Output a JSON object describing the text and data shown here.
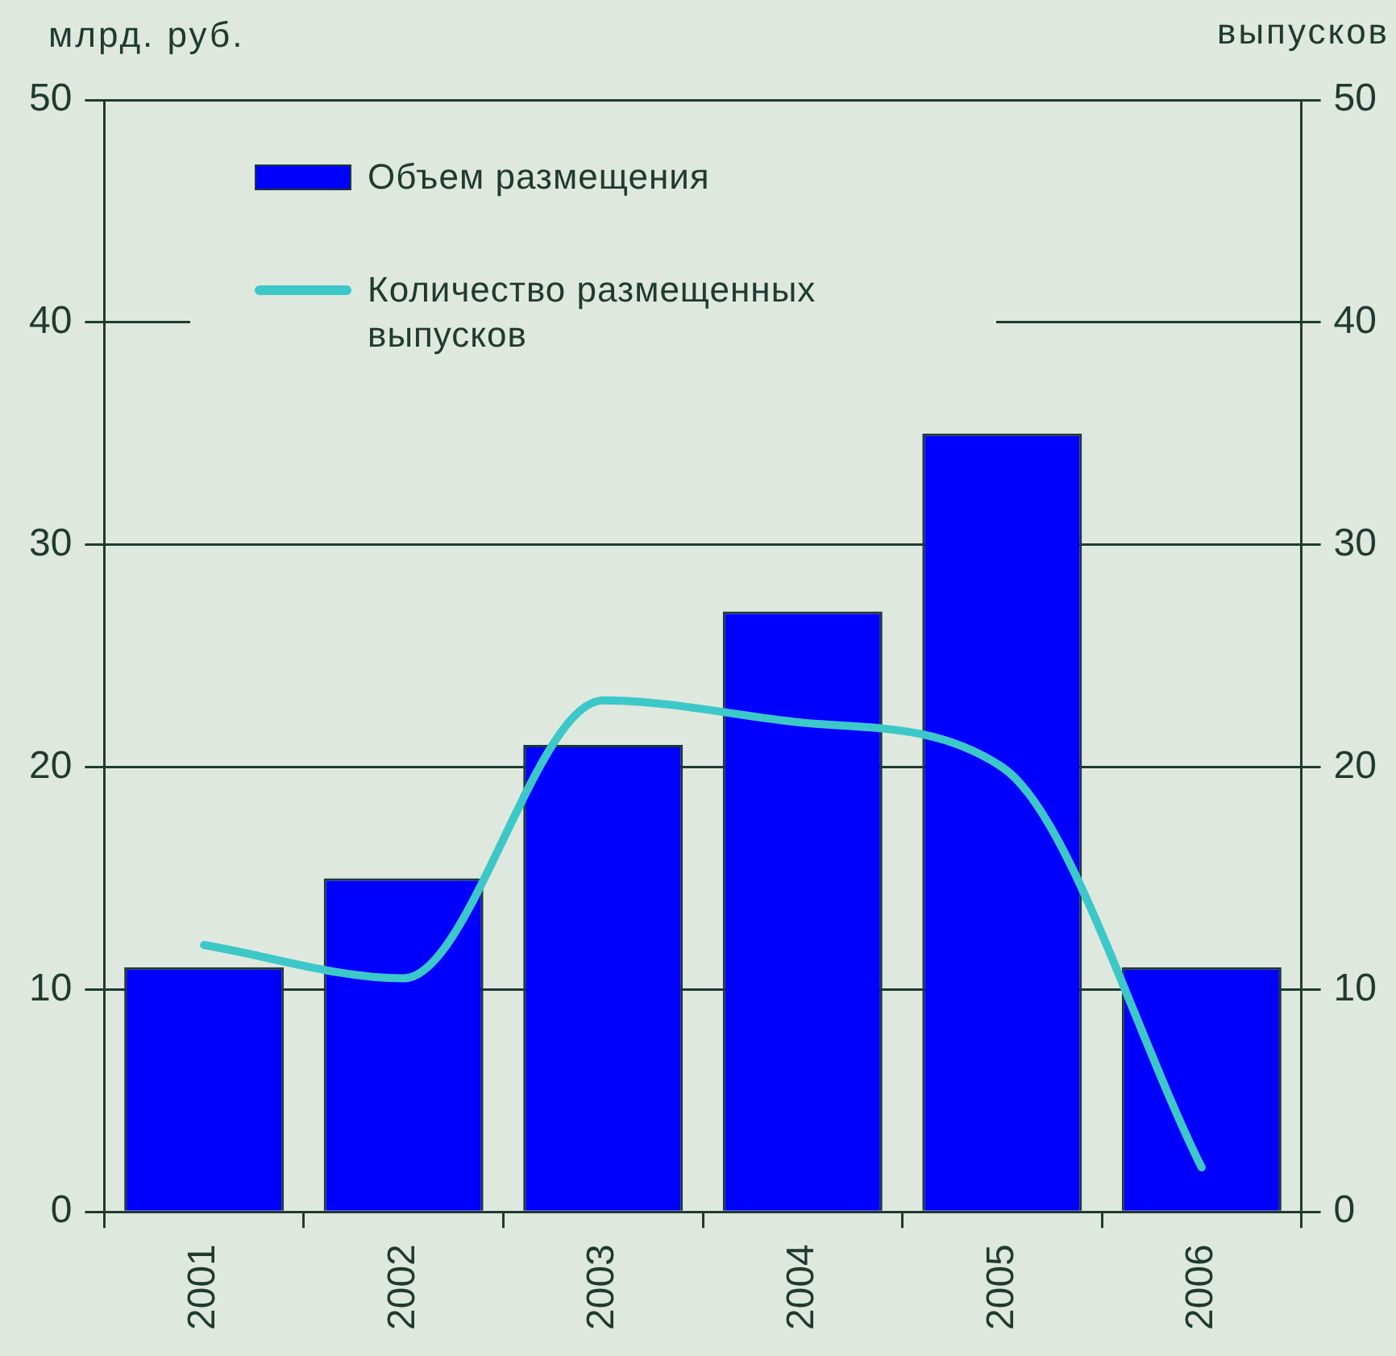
{
  "chart_data": {
    "type": "bar",
    "categories": [
      "2001",
      "2002",
      "2003",
      "2004",
      "2005",
      "2006"
    ],
    "series": [
      {
        "name": "Объем размещения",
        "color": "#0000ff",
        "values": [
          11,
          15,
          21,
          27,
          35,
          11
        ]
      },
      {
        "name": "Количество размещенных выпусков",
        "type": "line",
        "axis": "y2",
        "color": "#3cc8c8",
        "values": [
          12,
          10.5,
          23,
          22,
          20,
          2
        ]
      }
    ],
    "ylabel": "млрд. руб.",
    "y2label": "выпусков",
    "ylim": [
      0,
      50
    ],
    "yticks": [
      0,
      10,
      20,
      30,
      40,
      50
    ],
    "y2lim": [
      0,
      50
    ],
    "y2ticks": [
      0,
      10,
      20,
      30,
      40,
      50
    ],
    "grid": "y",
    "legend": "top left",
    "marker": "none",
    "line_style": "solid"
  }
}
